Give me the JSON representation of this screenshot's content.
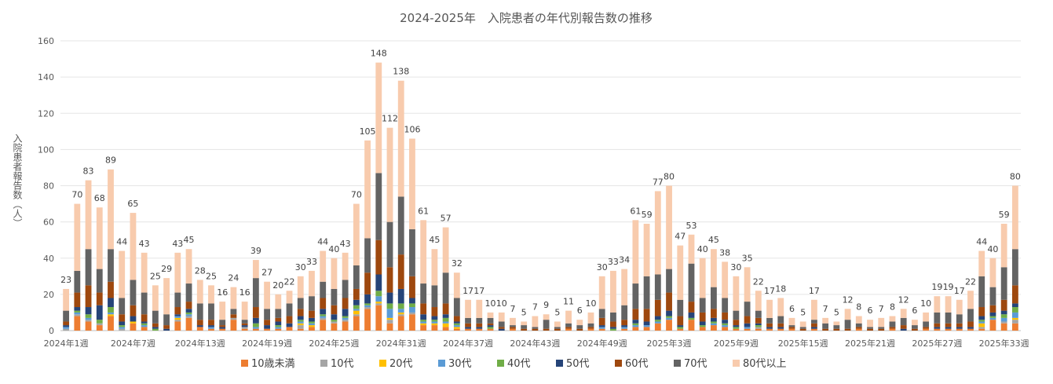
{
  "chart_data": {
    "type": "bar",
    "stacked": true,
    "title": "2024-2025年　入院患者の年代別報告数の推移",
    "ylabel": "入院患者報告数（人）",
    "ylim": [
      0,
      160
    ],
    "yticks": [
      0,
      20,
      40,
      60,
      80,
      100,
      120,
      140,
      160
    ],
    "grid": true,
    "legend_position": "bottom",
    "x_tick_labels": [
      {
        "index": 0,
        "label": "2024年1週"
      },
      {
        "index": 6,
        "label": "2024年7週"
      },
      {
        "index": 12,
        "label": "2024年13週"
      },
      {
        "index": 18,
        "label": "2024年19週"
      },
      {
        "index": 24,
        "label": "2024年25週"
      },
      {
        "index": 30,
        "label": "2024年31週"
      },
      {
        "index": 36,
        "label": "2024年37週"
      },
      {
        "index": 42,
        "label": "2024年43週"
      },
      {
        "index": 48,
        "label": "2024年49週"
      },
      {
        "index": 54,
        "label": "2025年3週"
      },
      {
        "index": 60,
        "label": "2025年9週"
      },
      {
        "index": 66,
        "label": "2025年15週"
      },
      {
        "index": 72,
        "label": "2025年21週"
      },
      {
        "index": 78,
        "label": "2025年27週"
      },
      {
        "index": 84,
        "label": "2025年33週"
      }
    ],
    "totals": [
      23,
      70,
      83,
      68,
      89,
      44,
      65,
      43,
      25,
      29,
      43,
      45,
      28,
      25,
      16,
      24,
      16,
      39,
      27,
      20,
      22,
      30,
      33,
      44,
      40,
      43,
      70,
      105,
      148,
      112,
      138,
      106,
      61,
      45,
      57,
      32,
      17,
      17,
      10,
      10,
      7,
      5,
      7,
      9,
      5,
      11,
      6,
      10,
      30,
      33,
      34,
      61,
      59,
      77,
      80,
      47,
      53,
      40,
      45,
      38,
      30,
      35,
      22,
      17,
      18,
      6,
      5,
      17,
      7,
      5,
      12,
      8,
      6,
      7,
      8,
      12,
      6,
      10,
      19,
      19,
      17,
      22,
      44,
      40,
      59,
      80
    ],
    "series": [
      {
        "name": "10歳未満",
        "color": "#ED7D31",
        "values": [
          0,
          8,
          5,
          3,
          8,
          0,
          4,
          2,
          0,
          0,
          5,
          7,
          2,
          1,
          1,
          6,
          1,
          1,
          1,
          1,
          2,
          1,
          2,
          6,
          4,
          5,
          8,
          12,
          14,
          4,
          8,
          9,
          3,
          3,
          2,
          1,
          1,
          1,
          1,
          0,
          1,
          0,
          0,
          0,
          0,
          1,
          0,
          1,
          1,
          0,
          1,
          2,
          2,
          4,
          6,
          1,
          6,
          2,
          3,
          2,
          1,
          1,
          1,
          1,
          1,
          1,
          0,
          1,
          0,
          0,
          0,
          1,
          0,
          0,
          1,
          0,
          0,
          1,
          1,
          1,
          1,
          1,
          1,
          6,
          4,
          4
        ]
      },
      {
        "name": "10代",
        "color": "#A5A5A5",
        "values": [
          1,
          1,
          1,
          1,
          0,
          1,
          0,
          0,
          0,
          0,
          1,
          1,
          0,
          0,
          0,
          1,
          1,
          0,
          0,
          0,
          0,
          2,
          0,
          1,
          1,
          1,
          1,
          1,
          1,
          2,
          1,
          1,
          0,
          0,
          0,
          0,
          0,
          0,
          0,
          0,
          0,
          0,
          0,
          0,
          0,
          0,
          0,
          0,
          0,
          0,
          0,
          0,
          0,
          0,
          0,
          0,
          0,
          0,
          0,
          0,
          0,
          0,
          1,
          0,
          0,
          0,
          0,
          0,
          0,
          0,
          0,
          0,
          0,
          0,
          0,
          0,
          0,
          0,
          0,
          0,
          0,
          0,
          1,
          0,
          1,
          2
        ]
      },
      {
        "name": "20代",
        "color": "#FFC000",
        "values": [
          0,
          0,
          0,
          0,
          1,
          0,
          1,
          0,
          0,
          0,
          1,
          0,
          0,
          0,
          0,
          0,
          0,
          0,
          0,
          0,
          0,
          1,
          1,
          0,
          0,
          0,
          2,
          0,
          1,
          1,
          1,
          0,
          1,
          1,
          2,
          1,
          0,
          0,
          0,
          0,
          0,
          0,
          0,
          0,
          0,
          0,
          0,
          0,
          0,
          0,
          0,
          0,
          0,
          0,
          0,
          0,
          0,
          0,
          0,
          0,
          0,
          0,
          0,
          0,
          0,
          0,
          0,
          0,
          0,
          0,
          0,
          0,
          0,
          0,
          0,
          0,
          0,
          0,
          0,
          0,
          0,
          0,
          2,
          0,
          0,
          1
        ]
      },
      {
        "name": "30代",
        "color": "#5B9BD5",
        "values": [
          1,
          1,
          1,
          0,
          1,
          1,
          0,
          1,
          0,
          0,
          1,
          1,
          0,
          1,
          0,
          0,
          0,
          1,
          0,
          1,
          0,
          1,
          1,
          1,
          0,
          1,
          1,
          1,
          3,
          5,
          2,
          3,
          1,
          1,
          1,
          1,
          0,
          0,
          0,
          0,
          0,
          0,
          0,
          0,
          0,
          0,
          0,
          0,
          1,
          0,
          1,
          1,
          1,
          1,
          1,
          0,
          0,
          0,
          1,
          1,
          0,
          1,
          0,
          0,
          0,
          0,
          0,
          0,
          0,
          0,
          0,
          0,
          0,
          0,
          0,
          0,
          0,
          0,
          0,
          0,
          0,
          0,
          1,
          1,
          2,
          3
        ]
      },
      {
        "name": "40代",
        "color": "#70AD47",
        "values": [
          0,
          1,
          2,
          2,
          3,
          1,
          0,
          1,
          1,
          0,
          0,
          1,
          0,
          0,
          0,
          0,
          0,
          2,
          0,
          1,
          0,
          1,
          1,
          1,
          1,
          1,
          2,
          1,
          3,
          3,
          3,
          2,
          1,
          1,
          2,
          1,
          0,
          0,
          1,
          0,
          0,
          0,
          0,
          0,
          0,
          0,
          0,
          0,
          0,
          1,
          0,
          1,
          0,
          1,
          1,
          1,
          1,
          1,
          1,
          1,
          1,
          0,
          1,
          0,
          0,
          0,
          0,
          0,
          0,
          0,
          0,
          0,
          0,
          0,
          0,
          0,
          0,
          0,
          0,
          0,
          0,
          0,
          1,
          1,
          2,
          3
        ]
      },
      {
        "name": "50代",
        "color": "#264478",
        "values": [
          1,
          2,
          4,
          8,
          5,
          2,
          3,
          1,
          1,
          1,
          1,
          2,
          1,
          1,
          1,
          0,
          1,
          3,
          2,
          2,
          2,
          2,
          2,
          3,
          3,
          4,
          3,
          5,
          9,
          6,
          8,
          3,
          3,
          2,
          2,
          1,
          1,
          1,
          1,
          1,
          0,
          0,
          0,
          0,
          0,
          0,
          0,
          0,
          1,
          1,
          1,
          2,
          2,
          2,
          3,
          1,
          3,
          2,
          2,
          2,
          1,
          2,
          1,
          1,
          1,
          0,
          0,
          1,
          0,
          0,
          0,
          0,
          0,
          0,
          0,
          1,
          0,
          0,
          1,
          1,
          1,
          1,
          2,
          2,
          2,
          2
        ]
      },
      {
        "name": "60代",
        "color": "#9E480E",
        "values": [
          2,
          8,
          12,
          7,
          9,
          4,
          6,
          4,
          2,
          2,
          4,
          4,
          3,
          3,
          1,
          2,
          1,
          6,
          3,
          2,
          4,
          4,
          4,
          6,
          5,
          6,
          6,
          12,
          19,
          14,
          19,
          12,
          6,
          5,
          6,
          3,
          2,
          2,
          1,
          1,
          1,
          1,
          1,
          1,
          1,
          1,
          1,
          1,
          4,
          3,
          3,
          6,
          7,
          9,
          10,
          5,
          6,
          5,
          5,
          4,
          3,
          4,
          3,
          2,
          2,
          1,
          1,
          2,
          1,
          1,
          1,
          1,
          1,
          1,
          1,
          2,
          1,
          1,
          2,
          2,
          2,
          3,
          5,
          4,
          6,
          10
        ]
      },
      {
        "name": "70代",
        "color": "#636363",
        "values": [
          6,
          12,
          20,
          13,
          18,
          9,
          14,
          12,
          7,
          6,
          8,
          10,
          9,
          9,
          3,
          3,
          2,
          16,
          6,
          5,
          7,
          6,
          8,
          9,
          9,
          10,
          13,
          19,
          37,
          25,
          32,
          26,
          11,
          12,
          17,
          10,
          3,
          3,
          3,
          3,
          1,
          2,
          1,
          5,
          1,
          2,
          2,
          2,
          5,
          5,
          8,
          14,
          18,
          14,
          13,
          9,
          21,
          8,
          12,
          8,
          5,
          8,
          4,
          3,
          4,
          1,
          1,
          2,
          3,
          2,
          5,
          2,
          1,
          1,
          3,
          4,
          2,
          3,
          6,
          6,
          5,
          7,
          17,
          10,
          18,
          20
        ]
      },
      {
        "name": "80代以上",
        "color": "#F8CBAD",
        "values": [
          12,
          37,
          38,
          34,
          44,
          26,
          37,
          22,
          14,
          20,
          22,
          19,
          13,
          10,
          10,
          12,
          10,
          10,
          15,
          8,
          7,
          12,
          14,
          17,
          17,
          15,
          34,
          54,
          61,
          52,
          64,
          50,
          35,
          20,
          25,
          14,
          10,
          10,
          3,
          5,
          4,
          2,
          6,
          3,
          3,
          7,
          3,
          6,
          18,
          23,
          20,
          35,
          29,
          46,
          46,
          30,
          16,
          22,
          21,
          20,
          19,
          19,
          11,
          10,
          10,
          4,
          3,
          11,
          3,
          2,
          6,
          4,
          4,
          5,
          3,
          5,
          3,
          5,
          9,
          9,
          8,
          10,
          14,
          16,
          24,
          35
        ]
      }
    ]
  }
}
